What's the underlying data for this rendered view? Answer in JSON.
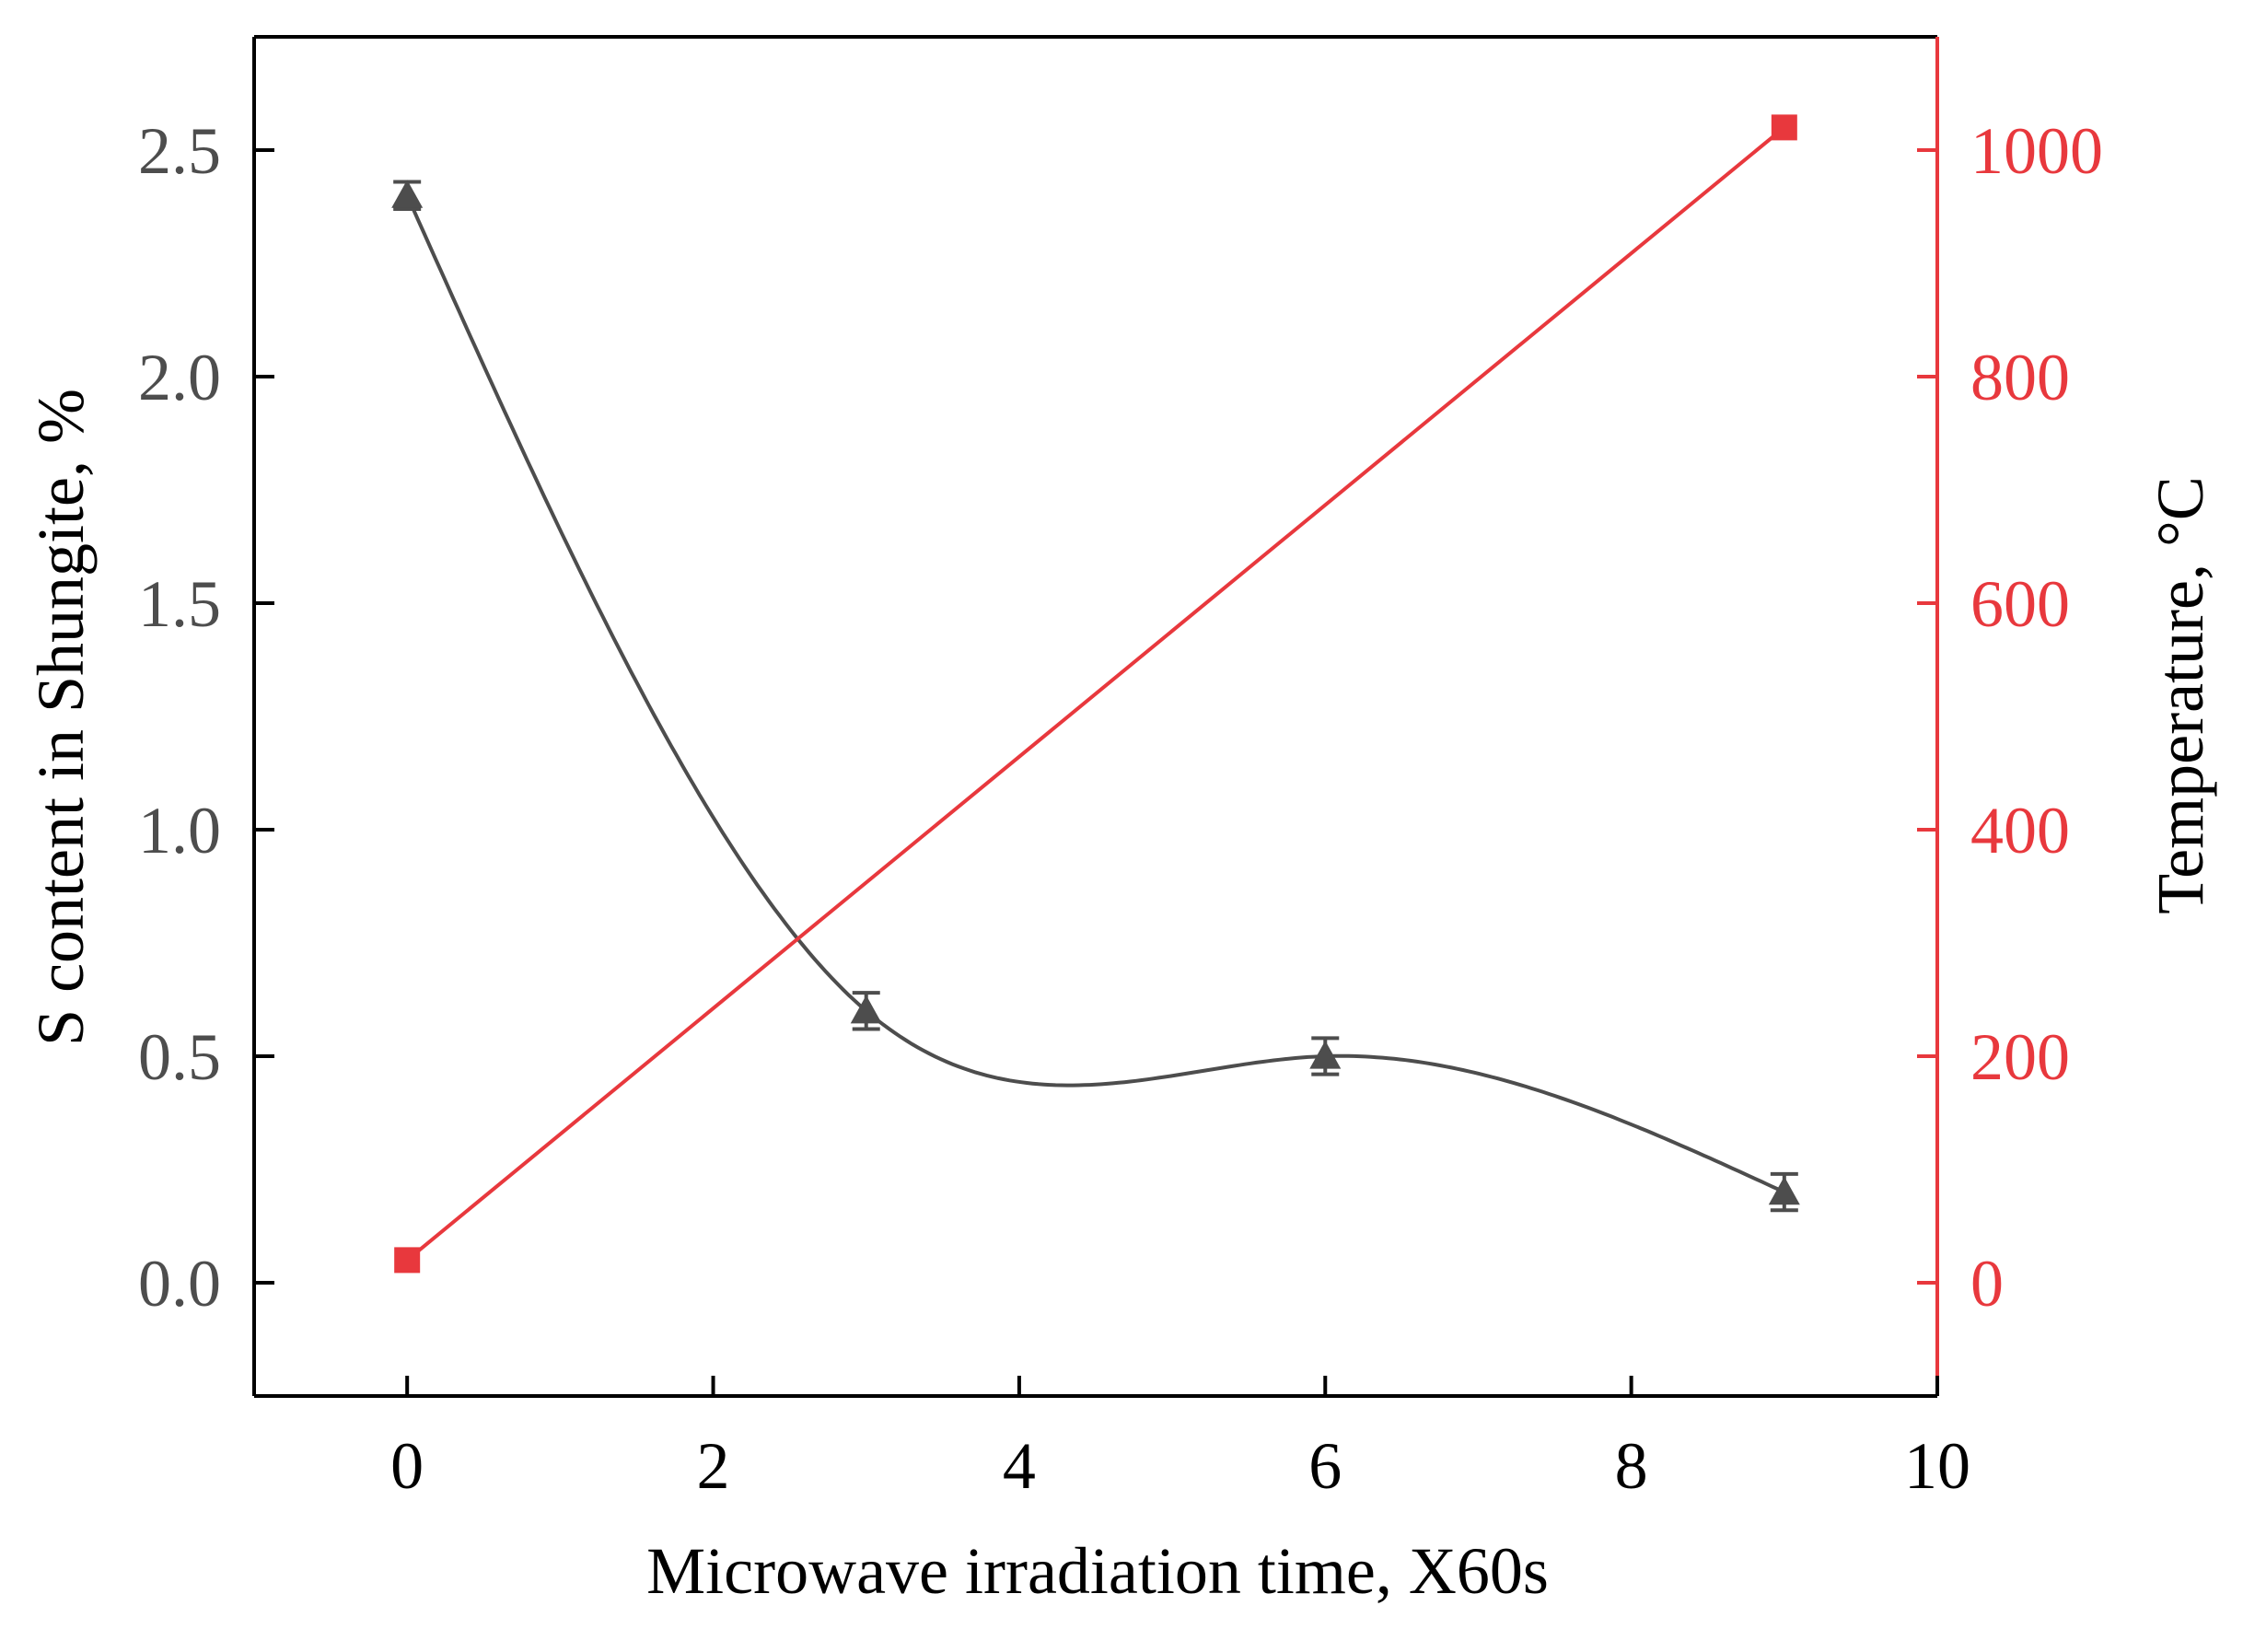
{
  "chart_data": {
    "type": "line",
    "title": "",
    "xlabel": "Microwave irradiation time, X60s",
    "ylabel_left": "S content in Shungite, %",
    "ylabel_right": "Temperature, °C",
    "xlim": [
      -1,
      10
    ],
    "ylim_left": [
      -0.25,
      2.75
    ],
    "ylim_right": [
      -100,
      1100
    ],
    "x_ticks": [
      "0",
      "2",
      "4",
      "6",
      "8",
      "10"
    ],
    "y_left_ticks": [
      "0.0",
      "0.5",
      "1.0",
      "1.5",
      "2.0",
      "2.5"
    ],
    "y_right_ticks": [
      "0",
      "200",
      "400",
      "600",
      "800",
      "1000"
    ],
    "grid": false,
    "colors": {
      "sulfur": "#4d4d4d",
      "temperature": "#e8383d",
      "axes": "#000000"
    },
    "series": [
      {
        "name": "S content",
        "axis": "left",
        "marker": "triangle",
        "smooth": true,
        "x": [
          0,
          3,
          6,
          9
        ],
        "values": [
          2.4,
          0.6,
          0.5,
          0.2
        ],
        "errors": [
          0.03,
          0.04,
          0.04,
          0.04
        ]
      },
      {
        "name": "Temperature",
        "axis": "right",
        "marker": "square",
        "smooth": false,
        "x": [
          0,
          9
        ],
        "values": [
          20,
          1020
        ]
      }
    ]
  }
}
